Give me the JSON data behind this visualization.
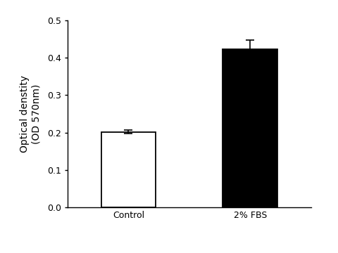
{
  "categories": [
    "Control",
    "2% FBS"
  ],
  "values": [
    0.202,
    0.422
  ],
  "errors": [
    0.005,
    0.025
  ],
  "bar_colors": [
    "#ffffff",
    "#000000"
  ],
  "bar_edge_colors": [
    "#000000",
    "#000000"
  ],
  "bar_width": 0.45,
  "ylabel_line1": "Optical denstity",
  "ylabel_line2": "(OD 570nm)",
  "ylim": [
    0,
    0.5
  ],
  "yticks": [
    0.0,
    0.1,
    0.2,
    0.3,
    0.4,
    0.5
  ],
  "error_capsize": 4,
  "error_color": "#000000",
  "error_linewidth": 1.2,
  "tick_fontsize": 9,
  "label_fontsize": 10,
  "background_color": "#ffffff",
  "spine_color": "#000000",
  "bar_positions": [
    0.3,
    0.75
  ]
}
